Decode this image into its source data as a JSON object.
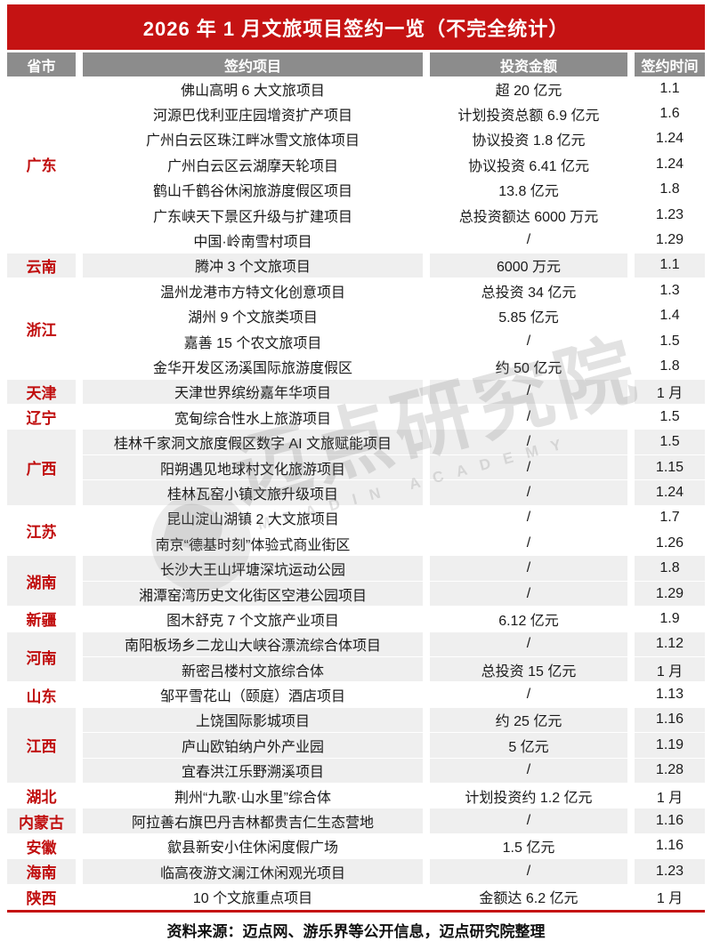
{
  "title": "2026 年 1 月文旅项目签约一览（不完全统计）",
  "columns": [
    "省市",
    "签约项目",
    "投资金额",
    "签约时间"
  ],
  "groups": [
    {
      "province": "广东",
      "rows": [
        [
          "佛山高明 6 大文旅项目",
          "超 20 亿元",
          "1.1"
        ],
        [
          "河源巴伐利亚庄园增资扩产项目",
          "计划投资总额 6.9 亿元",
          "1.6"
        ],
        [
          "广州白云区珠江畔冰雪文旅体项目",
          "协议投资 1.8 亿元",
          "1.24"
        ],
        [
          "广州白云区云湖摩天轮项目",
          "协议投资 6.41 亿元",
          "1.24"
        ],
        [
          "鹤山千鹤谷休闲旅游度假区项目",
          "13.8 亿元",
          "1.8"
        ],
        [
          "广东峡天下景区升级与扩建项目",
          "总投资额达 6000 万元",
          "1.23"
        ],
        [
          "中国·岭南雪村项目",
          "/",
          "1.29"
        ]
      ]
    },
    {
      "province": "云南",
      "rows": [
        [
          "腾冲 3 个文旅项目",
          "6000 万元",
          "1.1"
        ]
      ]
    },
    {
      "province": "浙江",
      "rows": [
        [
          "温州龙港市方特文化创意项目",
          "总投资 34 亿元",
          "1.3"
        ],
        [
          "湖州 9 个文旅类项目",
          "5.85 亿元",
          "1.4"
        ],
        [
          "嘉善 15 个农文旅项目",
          "/",
          "1.5"
        ],
        [
          "金华开发区汤溪国际旅游度假区",
          "约 50 亿元",
          "1.8"
        ]
      ]
    },
    {
      "province": "天津",
      "rows": [
        [
          "天津世界缤纷嘉年华项目",
          "/",
          "1 月"
        ]
      ]
    },
    {
      "province": "辽宁",
      "rows": [
        [
          "宽甸综合性水上旅游项目",
          "/",
          "1.5"
        ]
      ]
    },
    {
      "province": "广西",
      "rows": [
        [
          "桂林千家洞文旅度假区数字 AI 文旅赋能项目",
          "/",
          "1.5"
        ],
        [
          "阳朔遇见地球村文化旅游项目",
          "/",
          "1.15"
        ],
        [
          "桂林瓦窑小镇文旅升级项目",
          "/",
          "1.24"
        ]
      ]
    },
    {
      "province": "江苏",
      "rows": [
        [
          "昆山淀山湖镇 2 大文旅项目",
          "/",
          "1.7"
        ],
        [
          "南京“德基时刻”体验式商业街区",
          "/",
          "1.26"
        ]
      ]
    },
    {
      "province": "湖南",
      "rows": [
        [
          "长沙大王山坪塘深坑运动公园",
          "/",
          "1.8"
        ],
        [
          "湘潭窑湾历史文化街区空港公园项目",
          "/",
          "1.29"
        ]
      ]
    },
    {
      "province": "新疆",
      "rows": [
        [
          "图木舒克 7 个文旅产业项目",
          "6.12 亿元",
          "1.9"
        ]
      ]
    },
    {
      "province": "河南",
      "rows": [
        [
          "南阳板场乡二龙山大峡谷漂流综合体项目",
          "/",
          "1.12"
        ],
        [
          "新密吕楼村文旅综合体",
          "总投资 15 亿元",
          "1 月"
        ]
      ]
    },
    {
      "province": "山东",
      "rows": [
        [
          "邹平雪花山（颐庭）酒店项目",
          "/",
          "1.13"
        ]
      ]
    },
    {
      "province": "江西",
      "rows": [
        [
          "上饶国际影城项目",
          "约 25 亿元",
          "1.16"
        ],
        [
          "庐山欧铂纳户外产业园",
          "5 亿元",
          "1.19"
        ],
        [
          "宜春洪江乐野溯溪项目",
          "/",
          "1.28"
        ]
      ]
    },
    {
      "province": "湖北",
      "rows": [
        [
          "荆州“九歌·山水里”综合体",
          "计划投资约 1.2 亿元",
          "1 月"
        ]
      ]
    },
    {
      "province": "内蒙古",
      "rows": [
        [
          "阿拉善右旗巴丹吉林都贵吉仁生态营地",
          "/",
          "1.16"
        ]
      ]
    },
    {
      "province": "安徽",
      "rows": [
        [
          "歙县新安小住休闲度假广场",
          "1.5 亿元",
          "1.16"
        ]
      ]
    },
    {
      "province": "海南",
      "rows": [
        [
          "临高夜游文澜江休闲观光项目",
          "/",
          "1.23"
        ]
      ]
    },
    {
      "province": "陕西",
      "rows": [
        [
          "10 个文旅重点项目",
          "金额达 6.2 亿元",
          "1 月"
        ]
      ]
    }
  ],
  "footer": "资料来源：迈点网、游乐界等公开信息，迈点研究院整理",
  "watermark": {
    "cn": "迈点研究院",
    "en": "MEADIN ACADEMY"
  },
  "colors": {
    "banner": "#c51313",
    "header": "#8c8c8c",
    "shade": "#efefef",
    "province": "#c00d0d",
    "line": "#c51313"
  }
}
